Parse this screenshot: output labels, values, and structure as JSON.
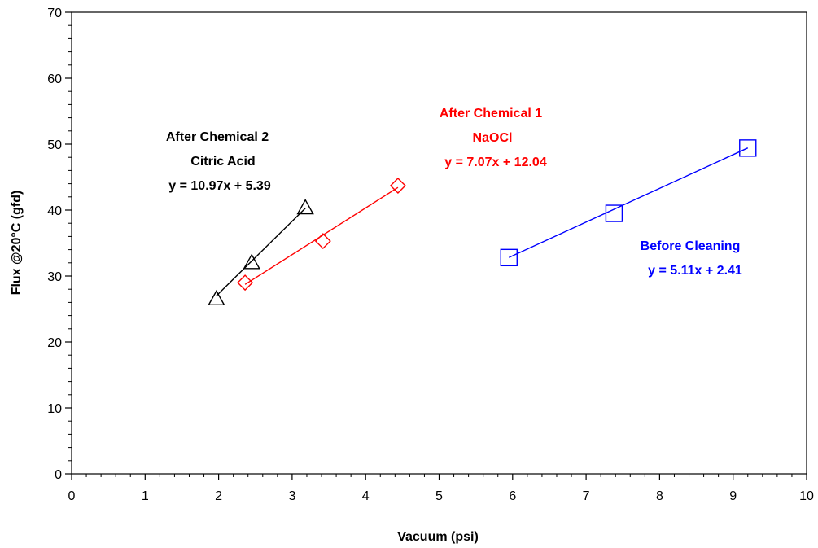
{
  "chart_data": {
    "type": "scatter",
    "title": "",
    "xlabel": "Vacuum (psi)",
    "ylabel": "Flux @20°C (gfd)",
    "xlim": [
      0,
      10
    ],
    "ylim": [
      0,
      70
    ],
    "x_major_ticks": [
      0,
      1,
      2,
      3,
      4,
      5,
      6,
      7,
      8,
      9,
      10
    ],
    "y_major_ticks": [
      0,
      10,
      20,
      30,
      40,
      50,
      60,
      70
    ],
    "x_minor_step": 0.2,
    "y_minor_step": 2,
    "grid": false,
    "legend": "none",
    "series": [
      {
        "key": "chem2",
        "marker": "triangle",
        "color": "#000000",
        "points": [
          [
            1.97,
            26.5
          ],
          [
            2.45,
            32.0
          ],
          [
            3.18,
            40.3
          ]
        ],
        "fit": {
          "slope": 10.97,
          "intercept": 5.39,
          "x_range": [
            1.97,
            3.18
          ]
        },
        "label_lines": [
          "After Chemical 2",
          "Citric Acid",
          "y = 10.97x + 5.39"
        ]
      },
      {
        "key": "chem1",
        "marker": "diamond",
        "color": "#ff0000",
        "points": [
          [
            2.36,
            29.0
          ],
          [
            3.42,
            35.3
          ],
          [
            4.44,
            43.7
          ]
        ],
        "fit": {
          "slope": 7.07,
          "intercept": 12.04,
          "x_range": [
            2.36,
            4.44
          ]
        },
        "label_lines": [
          "After Chemical 1",
          "NaOCl",
          "y = 7.07x + 12.04"
        ]
      },
      {
        "key": "before",
        "marker": "square",
        "color": "#0000ff",
        "points": [
          [
            5.95,
            32.8
          ],
          [
            7.38,
            39.5
          ],
          [
            9.2,
            49.4
          ]
        ],
        "fit": {
          "slope": 5.11,
          "intercept": 2.41,
          "x_range": [
            5.95,
            9.2
          ]
        },
        "label_lines": [
          "Before Cleaning",
          "y = 5.11x + 2.41"
        ]
      }
    ]
  }
}
